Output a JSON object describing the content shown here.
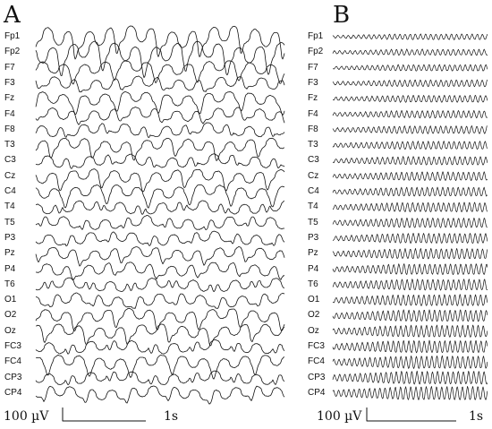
{
  "panels": [
    {
      "letter": "A",
      "amplitude_label": "100 µV",
      "time_label": "1s"
    },
    {
      "letter": "B",
      "amplitude_label": "100 µV",
      "time_label": "1s"
    }
  ],
  "channels": [
    "Fp1",
    "Fp2",
    "F7",
    "F3",
    "Fz",
    "F4",
    "F8",
    "T3",
    "C3",
    "Cz",
    "C4",
    "T4",
    "T5",
    "P3",
    "Pz",
    "P4",
    "T6",
    "O1",
    "O2",
    "Oz",
    "FC3",
    "FC4",
    "CP3",
    "CP4"
  ]
}
